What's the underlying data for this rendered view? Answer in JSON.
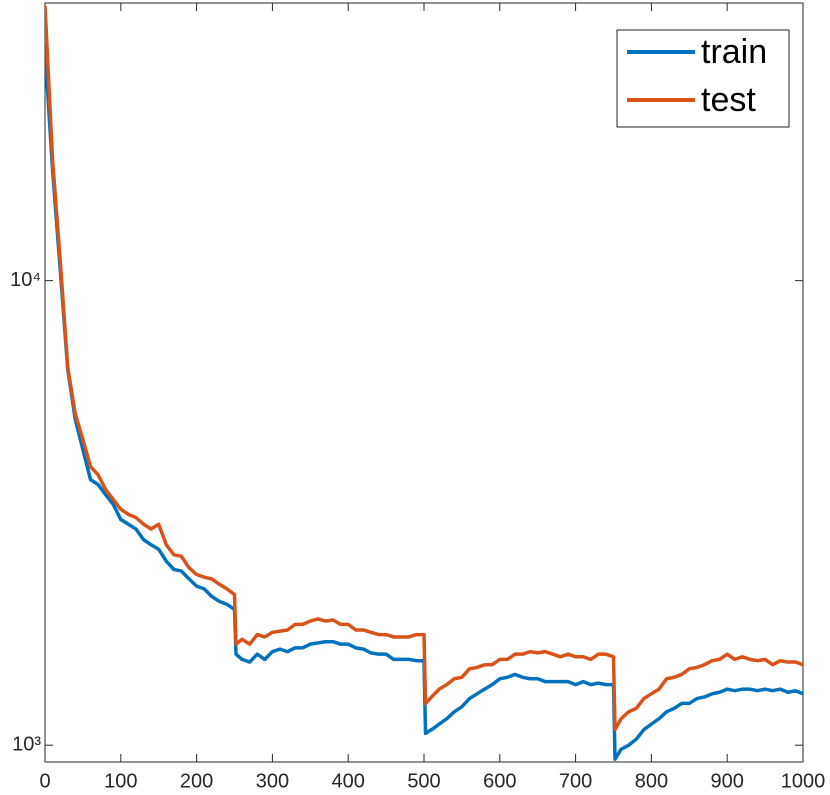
{
  "chart_data": {
    "type": "line",
    "x": [
      0,
      10,
      20,
      30,
      40,
      50,
      60,
      70,
      80,
      90,
      100,
      110,
      120,
      130,
      140,
      150,
      160,
      170,
      180,
      190,
      200,
      210,
      220,
      230,
      240,
      250,
      252,
      260,
      270,
      280,
      290,
      300,
      310,
      320,
      330,
      340,
      350,
      360,
      370,
      380,
      390,
      400,
      410,
      420,
      430,
      440,
      450,
      460,
      470,
      480,
      490,
      500,
      502,
      510,
      520,
      530,
      540,
      550,
      560,
      570,
      580,
      590,
      600,
      610,
      620,
      630,
      640,
      650,
      660,
      670,
      680,
      690,
      700,
      710,
      720,
      730,
      740,
      750,
      752,
      760,
      770,
      780,
      790,
      800,
      810,
      820,
      830,
      840,
      850,
      860,
      870,
      880,
      890,
      900,
      910,
      920,
      930,
      940,
      950,
      960,
      970,
      980,
      990,
      1000
    ],
    "series": [
      {
        "name": "train",
        "color": "#0072BD",
        "values": [
          31400,
          17300,
          10600,
          6440,
          5020,
          4330,
          3730,
          3640,
          3460,
          3300,
          3060,
          2990,
          2920,
          2770,
          2700,
          2640,
          2490,
          2390,
          2370,
          2280,
          2200,
          2170,
          2090,
          2040,
          2010,
          1960,
          1570,
          1530,
          1510,
          1570,
          1530,
          1590,
          1610,
          1590,
          1620,
          1620,
          1650,
          1660,
          1670,
          1670,
          1650,
          1650,
          1620,
          1610,
          1580,
          1570,
          1570,
          1530,
          1530,
          1530,
          1520,
          1520,
          1060,
          1080,
          1110,
          1140,
          1180,
          1210,
          1260,
          1290,
          1320,
          1350,
          1390,
          1400,
          1420,
          1400,
          1390,
          1390,
          1370,
          1370,
          1370,
          1370,
          1350,
          1370,
          1350,
          1360,
          1350,
          1350,
          933,
          980,
          1000,
          1030,
          1080,
          1110,
          1140,
          1180,
          1200,
          1230,
          1230,
          1260,
          1270,
          1290,
          1300,
          1320,
          1310,
          1320,
          1320,
          1310,
          1320,
          1310,
          1320,
          1300,
          1310,
          1290
        ]
      },
      {
        "name": "test",
        "color": "#D95319",
        "values": [
          39000,
          18200,
          11100,
          6500,
          5160,
          4550,
          3980,
          3820,
          3550,
          3380,
          3220,
          3140,
          3090,
          2990,
          2920,
          2990,
          2700,
          2570,
          2550,
          2410,
          2330,
          2300,
          2280,
          2220,
          2170,
          2110,
          1650,
          1690,
          1650,
          1730,
          1710,
          1750,
          1760,
          1770,
          1820,
          1820,
          1850,
          1870,
          1850,
          1860,
          1820,
          1820,
          1770,
          1770,
          1750,
          1730,
          1730,
          1710,
          1710,
          1710,
          1730,
          1730,
          1230,
          1270,
          1320,
          1350,
          1390,
          1400,
          1460,
          1470,
          1490,
          1490,
          1530,
          1530,
          1570,
          1570,
          1590,
          1580,
          1590,
          1570,
          1550,
          1570,
          1550,
          1550,
          1530,
          1570,
          1570,
          1550,
          1080,
          1140,
          1180,
          1200,
          1260,
          1290,
          1320,
          1390,
          1400,
          1420,
          1460,
          1470,
          1490,
          1520,
          1530,
          1570,
          1530,
          1550,
          1530,
          1520,
          1530,
          1490,
          1520,
          1510,
          1510,
          1490
        ]
      }
    ],
    "xlim": [
      0,
      1000
    ],
    "xticks": [
      0,
      100,
      200,
      300,
      400,
      500,
      600,
      700,
      800,
      900,
      1000
    ],
    "ylim": [
      920,
      39600
    ],
    "yticks": [
      {
        "value": 1000,
        "label": "10³"
      },
      {
        "value": 10000,
        "label": "10⁴"
      }
    ],
    "log_y": true,
    "legend": "northeast"
  }
}
